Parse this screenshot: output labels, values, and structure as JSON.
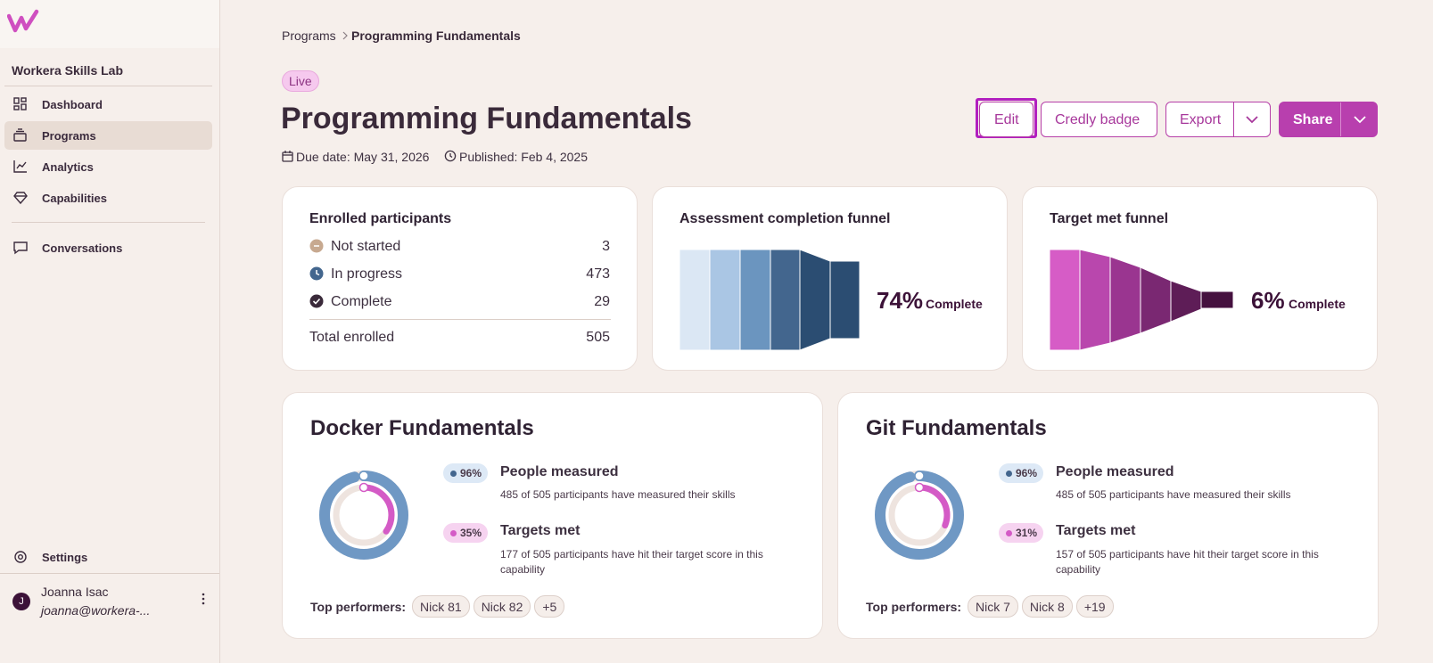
{
  "sidebar": {
    "org": "Workera Skills Lab",
    "nav": [
      "Dashboard",
      "Programs",
      "Analytics",
      "Capabilities",
      "Conversations"
    ],
    "settings": "Settings",
    "user": {
      "initial": "J",
      "name": "Joanna Isac",
      "email": "joanna@workera-..."
    }
  },
  "breadcrumb": [
    "Programs",
    "Programming Fundamentals"
  ],
  "status": "Live",
  "title": "Programming Fundamentals",
  "due": "Due date: May 31, 2026",
  "published": "Published: Feb 4, 2025",
  "actions": [
    "Edit",
    "Credly badge",
    "Export",
    "Share"
  ],
  "enrolled": {
    "title": "Enrolled participants",
    "rows": [
      [
        "Not started",
        3
      ],
      [
        "In progress",
        473
      ],
      [
        "Complete",
        29
      ]
    ],
    "total": [
      "Total enrolled",
      505
    ]
  },
  "funnels": [
    {
      "title": "Assessment completion funnel",
      "percent": {
        "value": 74,
        "label": "74%"
      },
      "suffix": "Complete"
    },
    {
      "title": "Target met funnel",
      "percent": {
        "value": 6,
        "label": "6%"
      },
      "suffix": "Complete"
    }
  ],
  "capabilities": [
    {
      "title": "Docker Fundamentals",
      "measured": {
        "value": 96,
        "label": "96%"
      },
      "measured_title": "People measured",
      "measured_text": "485 of 505 participants have measured their skills",
      "targets": {
        "value": 35,
        "label": "35%"
      },
      "targets_title": "Targets met",
      "targets_text": "177 of 505 participants have hit their target score in this capability",
      "performers_label": "Top performers:",
      "performers": [
        "Nick 81",
        "Nick 82",
        "+5"
      ]
    },
    {
      "title": "Git Fundamentals",
      "measured": {
        "value": 96,
        "label": "96%"
      },
      "measured_title": "People measured",
      "measured_text": "485 of 505 participants have measured their skills",
      "targets": {
        "value": 31,
        "label": "31%"
      },
      "targets_title": "Targets met",
      "targets_text": "157 of 505 participants have hit their target score in this capability",
      "performers_label": "Top performers:",
      "performers": [
        "Nick 7",
        "Nick 8",
        "+19"
      ]
    }
  ]
}
